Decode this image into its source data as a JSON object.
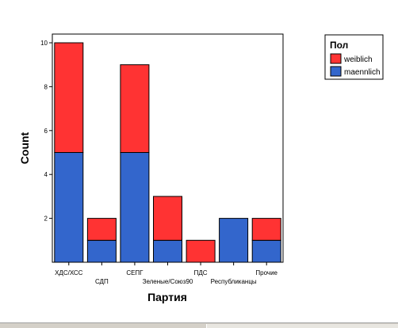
{
  "chart_data": {
    "type": "bar",
    "stacked": true,
    "categories": [
      "ХДС/ХСС",
      "СДП",
      "СЕПГ",
      "Зеленые/Союз90",
      "ПДС",
      "Республиканцы",
      "Прочие"
    ],
    "series": [
      {
        "name": "maennlich",
        "values": [
          5,
          1,
          5,
          1,
          0,
          2,
          1
        ],
        "color": "#3366cc"
      },
      {
        "name": "weiblich",
        "values": [
          5,
          1,
          4,
          2,
          1,
          0,
          1
        ],
        "color": "#ff3333"
      }
    ],
    "xlabel": "Партия",
    "ylabel": "Count",
    "ylim": [
      0,
      10
    ],
    "yticks": [
      2,
      4,
      6,
      8,
      10
    ],
    "grid": false,
    "legend": {
      "title": "Пол",
      "placement": "top-right",
      "entries": [
        {
          "label": "weiblich",
          "color": "#ff3333"
        },
        {
          "label": "maennlich",
          "color": "#3366cc"
        }
      ]
    }
  }
}
